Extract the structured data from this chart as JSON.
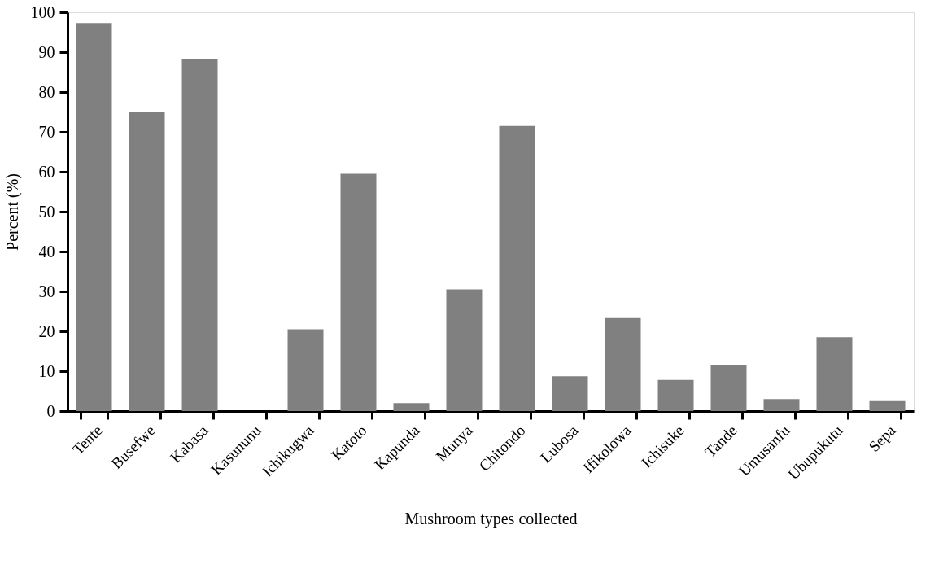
{
  "chart_data": {
    "type": "bar",
    "xlabel": "Mushroom types collected",
    "ylabel": "Percent (%)",
    "categories": [
      "Tente",
      "Busefwe",
      "Kabasa",
      "Kasununu",
      "Ichikugwa",
      "Katoto",
      "Kapunda",
      "Munya",
      "Chitondo",
      "Lubosa",
      "Ifikolowa",
      "Ichisuke",
      "Tande",
      "Umusanfu",
      "Ubupukutu",
      "Sepa"
    ],
    "values": [
      97.3,
      75,
      88.3,
      0,
      20.5,
      59.5,
      2,
      30.5,
      71.5,
      8.7,
      23.3,
      7.8,
      11.5,
      3,
      18.5,
      2.5
    ],
    "color": "#808080",
    "ylim": [
      0,
      100
    ],
    "yticks": [
      0,
      10,
      20,
      30,
      40,
      50,
      60,
      70,
      80,
      90,
      100
    ],
    "grid": false
  }
}
